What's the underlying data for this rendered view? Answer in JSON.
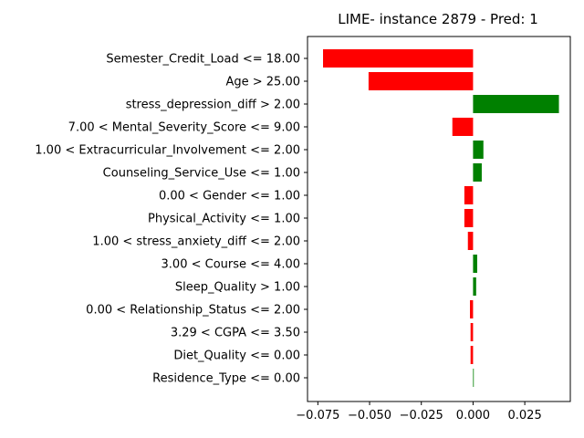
{
  "chart_data": {
    "type": "bar",
    "orientation": "horizontal",
    "title": "LIME- instance 2879 - Pred: 1",
    "xlabel": "",
    "ylabel": "",
    "xlim": [
      -0.08,
      0.047
    ],
    "xticks": [
      -0.075,
      -0.05,
      -0.025,
      0.0,
      0.025
    ],
    "xtick_labels": [
      "−0.075",
      "−0.050",
      "−0.025",
      "0.000",
      "0.025"
    ],
    "grid": false,
    "colors": {
      "positive": "#008000",
      "negative": "#ff0000"
    },
    "categories": [
      "Semester_Credit_Load <= 18.00",
      "Age > 25.00",
      "stress_depression_diff > 2.00",
      "7.00 < Mental_Severity_Score <= 9.00",
      "1.00 < Extracurricular_Involvement <= 2.00",
      "Counseling_Service_Use <= 1.00",
      "0.00 < Gender <= 1.00",
      "Physical_Activity <= 1.00",
      "1.00 < stress_anxiety_diff <= 2.00",
      "3.00 < Course <= 4.00",
      "Sleep_Quality > 1.00",
      "0.00 < Relationship_Status <= 2.00",
      "3.29 < CGPA <= 3.50",
      "Diet_Quality <= 0.00",
      "Residence_Type <= 0.00"
    ],
    "values": [
      -0.0725,
      -0.0505,
      0.0415,
      -0.01,
      0.005,
      0.0042,
      -0.0042,
      -0.0042,
      -0.0025,
      0.002,
      0.0015,
      -0.0015,
      -0.0012,
      -0.0012,
      0.0003
    ]
  }
}
